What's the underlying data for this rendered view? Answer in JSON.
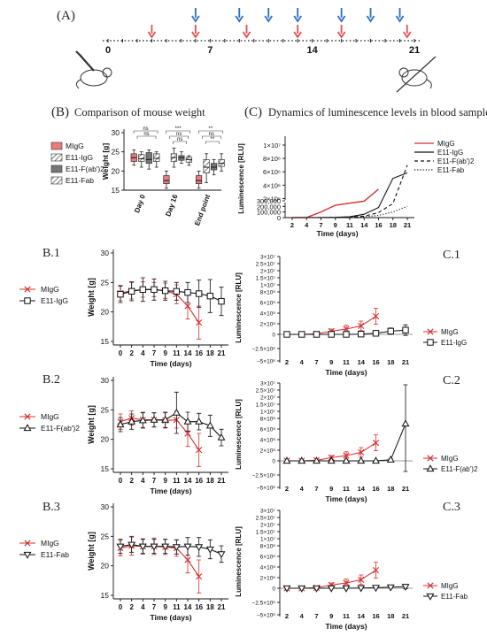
{
  "timeline": {
    "panel_label": "(A)",
    "ticks": [
      0,
      7,
      14,
      21
    ],
    "red_arrow_days": [
      3,
      6,
      9.5,
      13,
      16,
      20.5
    ],
    "blue_arrow_days": [
      6,
      9,
      11,
      13,
      16,
      18,
      20
    ],
    "red_color": "#e05252",
    "blue_color": "#2b6fc2",
    "icons": [
      "mouse-injection-icon",
      "mouse-crossed-icon"
    ]
  },
  "titles": {
    "b": "(B)",
    "b_text": "Comparison of mouse weight",
    "c": "(C)",
    "c_text": "Dynamics of luminescence levels in blood samples",
    "b1": "B.1",
    "b2": "B.2",
    "b3": "B.3",
    "c1": "C.1",
    "c2": "C.2",
    "c3": "C.3"
  },
  "chart_data": [
    {
      "id": "B",
      "type": "box",
      "ylabel": "Weight [g]",
      "ylim": [
        15,
        30
      ],
      "yticks": [
        15,
        20,
        25,
        30
      ],
      "categories": [
        "Day 0",
        "Day 16",
        "End point"
      ],
      "legend": [
        "MIgG",
        "E11-IgG",
        "E11-F(ab')2",
        "E11-Fab"
      ],
      "boxes": [
        [
          [
            21.5,
            22.5,
            23.5,
            24.5,
            25.5
          ],
          [
            21,
            22.5,
            23.2,
            24.3,
            25
          ],
          [
            20.5,
            22,
            23,
            24.8,
            25.5
          ],
          [
            21,
            22.5,
            23.3,
            24.5,
            25
          ]
        ],
        [
          [
            15.5,
            16.7,
            17.5,
            18.8,
            20
          ],
          [
            21,
            22.5,
            23.5,
            24.5,
            26
          ],
          [
            22,
            22.8,
            23.5,
            24,
            25
          ],
          [
            21.5,
            22.3,
            23,
            23.6,
            24
          ]
        ],
        [
          [
            15.5,
            16.7,
            17.5,
            18.8,
            20
          ],
          [
            17,
            19.5,
            21,
            23,
            24.5
          ],
          [
            19,
            20.3,
            21,
            22,
            23
          ],
          [
            20,
            21.2,
            22,
            23,
            24.5
          ]
        ]
      ],
      "annotations": [
        {
          "group": 0,
          "text": "ns"
        },
        {
          "group": 0,
          "text": "ns"
        },
        {
          "group": 1,
          "text": "***"
        },
        {
          "group": 1,
          "text": "ns"
        },
        {
          "group": 1,
          "text": "ns"
        },
        {
          "group": 2,
          "text": "**"
        },
        {
          "group": 2,
          "text": "ns"
        },
        {
          "group": 2,
          "text": "**"
        }
      ]
    },
    {
      "id": "C",
      "type": "line",
      "ylabel": "Luminescence [RLU]",
      "xlabel": "Time (days)",
      "x": [
        2,
        4,
        7,
        9,
        11,
        14,
        16,
        18,
        21
      ],
      "upper_ticks": [
        "1×10⁷",
        "8×10⁶",
        "6×10⁶",
        "4×10⁶",
        "2×10⁶"
      ],
      "lower_ticks": [
        "300,000",
        "200,000",
        "100,000",
        "0"
      ],
      "series": [
        {
          "name": "MIgG",
          "style": "solid",
          "color": "#d32f2f",
          "x": [
            2,
            4,
            7,
            9,
            11,
            14,
            16
          ],
          "y": [
            0,
            2000,
            100000,
            1000000,
            1300000,
            1600000,
            3400000
          ]
        },
        {
          "name": "E11-IgG",
          "style": "solid",
          "color": "#111111",
          "x": [
            2,
            4,
            7,
            9,
            11,
            14,
            16,
            18,
            21
          ],
          "y": [
            0,
            0,
            2000,
            5000,
            15000,
            60000,
            180000,
            700000,
            800000
          ]
        },
        {
          "name": "E11-F(ab')2",
          "style": "dashed",
          "color": "#111111",
          "x": [
            2,
            4,
            7,
            9,
            11,
            14,
            16,
            18,
            21
          ],
          "y": [
            0,
            0,
            1000,
            3000,
            8000,
            25000,
            90000,
            250000,
            7000000
          ]
        },
        {
          "name": "E11-Fab",
          "style": "dotted",
          "color": "#111111",
          "x": [
            2,
            4,
            7,
            9,
            11,
            14,
            16,
            18,
            21
          ],
          "y": [
            0,
            0,
            1000,
            2000,
            5000,
            15000,
            40000,
            100000,
            200000
          ]
        }
      ]
    },
    {
      "id": "B.1",
      "type": "line",
      "ylabel": "Weight [g]",
      "xlabel": "Time (days)",
      "x": [
        0,
        2,
        4,
        7,
        9,
        11,
        14,
        16,
        18,
        21
      ],
      "ylim": [
        15,
        30
      ],
      "yticks": [
        15,
        20,
        25,
        30
      ],
      "series": [
        {
          "name": "MIgG",
          "marker": "x",
          "color": "#d32f2f",
          "x": [
            0,
            2,
            4,
            7,
            9,
            11,
            14,
            16
          ],
          "y": [
            23.2,
            23.6,
            23.8,
            23.8,
            23.6,
            23.0,
            21.0,
            18.2
          ],
          "err": [
            1.3,
            1.4,
            1.3,
            1.2,
            1.3,
            1.6,
            2.2,
            2.8
          ]
        },
        {
          "name": "E11-IgG",
          "marker": "square",
          "color": "#111111",
          "x": [
            0,
            2,
            4,
            7,
            9,
            11,
            14,
            16,
            18,
            21
          ],
          "y": [
            23.0,
            23.5,
            23.8,
            23.8,
            23.6,
            23.5,
            23.3,
            23.1,
            22.7,
            21.8
          ],
          "err": [
            1.4,
            1.6,
            2.0,
            1.8,
            1.6,
            1.5,
            1.7,
            2.3,
            2.8,
            2.4
          ]
        }
      ]
    },
    {
      "id": "C.1",
      "type": "line",
      "ylabel": "Luminescence [RLU]",
      "xlabel": "Time (days)",
      "x": [
        2,
        4,
        7,
        9,
        11,
        14,
        16,
        18,
        21
      ],
      "yticks": [
        "3×10⁷",
        "2.5×10⁷",
        "2×10⁷",
        "1.5×10⁷",
        "1×10⁷",
        "8×10⁶",
        "6×10⁶",
        "4×10⁶",
        "2×10⁶",
        "0",
        "−2.5×10⁶",
        "−5×10⁶"
      ],
      "series": [
        {
          "name": "MIgG",
          "marker": "x",
          "color": "#d32f2f",
          "x": [
            2,
            4,
            7,
            9,
            11,
            14,
            16
          ],
          "y": [
            0,
            0,
            100000,
            600000,
            1000000,
            1600000,
            3400000
          ],
          "err": [
            0,
            0,
            0,
            400000,
            700000,
            900000,
            1500000
          ]
        },
        {
          "name": "E11-IgG",
          "marker": "square",
          "color": "#111111",
          "x": [
            2,
            4,
            7,
            9,
            11,
            14,
            16,
            18,
            21
          ],
          "y": [
            0,
            0,
            0,
            0,
            0,
            50000,
            200000,
            600000,
            800000
          ],
          "err": [
            0,
            0,
            0,
            0,
            0,
            0,
            300000,
            600000,
            1000000
          ]
        }
      ]
    },
    {
      "id": "B.2",
      "type": "line",
      "ylabel": "Weight [g]",
      "xlabel": "Time (days)",
      "x": [
        0,
        2,
        4,
        7,
        9,
        11,
        14,
        16,
        18,
        21
      ],
      "ylim": [
        15,
        30
      ],
      "yticks": [
        15,
        20,
        25,
        30
      ],
      "series": [
        {
          "name": "MIgG",
          "marker": "x",
          "color": "#d32f2f",
          "x": [
            0,
            2,
            4,
            7,
            9,
            11,
            14,
            16
          ],
          "y": [
            23.0,
            23.6,
            23.3,
            23.3,
            23.2,
            23.3,
            21.0,
            18.2
          ],
          "err": [
            1.3,
            1.2,
            1.3,
            1.2,
            1.3,
            1.4,
            2.2,
            2.8
          ]
        },
        {
          "name": "E11-F(ab')2",
          "marker": "triangle",
          "color": "#111111",
          "x": [
            0,
            2,
            4,
            7,
            9,
            11,
            14,
            16,
            18,
            21
          ],
          "y": [
            22.5,
            23.0,
            23.2,
            23.3,
            23.3,
            24.5,
            23.0,
            23.0,
            22.3,
            20.3
          ],
          "err": [
            1.2,
            1.3,
            1.3,
            1.2,
            1.3,
            3.5,
            1.6,
            1.4,
            1.8,
            1.4
          ]
        }
      ]
    },
    {
      "id": "C.2",
      "type": "line",
      "ylabel": "Luminescence [RLU]",
      "xlabel": "Time (days)",
      "x": [
        2,
        4,
        7,
        9,
        11,
        14,
        16,
        18,
        21
      ],
      "yticks": [
        "3×10⁷",
        "2.5×10⁷",
        "2×10⁷",
        "1.5×10⁷",
        "1×10⁷",
        "8×10⁶",
        "6×10⁶",
        "4×10⁶",
        "2×10⁶",
        "0",
        "−2.5×10⁶",
        "−5×10⁶"
      ],
      "series": [
        {
          "name": "MIgG",
          "marker": "x",
          "color": "#d32f2f",
          "x": [
            2,
            4,
            7,
            9,
            11,
            14,
            16
          ],
          "y": [
            0,
            0,
            100000,
            600000,
            1000000,
            1600000,
            3400000
          ],
          "err": [
            0,
            0,
            0,
            400000,
            700000,
            900000,
            1500000
          ]
        },
        {
          "name": "E11-F(ab')2",
          "marker": "triangle",
          "color": "#111111",
          "x": [
            2,
            4,
            7,
            9,
            11,
            14,
            16,
            18,
            21
          ],
          "y": [
            0,
            0,
            0,
            0,
            0,
            0,
            0,
            200000,
            7000000
          ],
          "err": [
            0,
            0,
            0,
            0,
            0,
            0,
            0,
            200000,
            9000000
          ]
        }
      ]
    },
    {
      "id": "B.3",
      "type": "line",
      "ylabel": "Weight [g]",
      "xlabel": "Time (days)",
      "x": [
        0,
        2,
        4,
        7,
        9,
        11,
        14,
        16,
        18,
        21
      ],
      "ylim": [
        15,
        30
      ],
      "yticks": [
        15,
        20,
        25,
        30
      ],
      "series": [
        {
          "name": "MIgG",
          "marker": "x",
          "color": "#d32f2f",
          "x": [
            0,
            2,
            4,
            7,
            9,
            11,
            14,
            16
          ],
          "y": [
            23.0,
            23.4,
            23.3,
            23.3,
            23.2,
            23.0,
            21.0,
            18.2
          ],
          "err": [
            1.3,
            1.6,
            1.3,
            1.4,
            1.3,
            1.4,
            2.2,
            2.8
          ]
        },
        {
          "name": "E11-Fab",
          "marker": "triangle-down",
          "color": "#111111",
          "x": [
            0,
            2,
            4,
            7,
            9,
            11,
            14,
            16,
            18,
            21
          ],
          "y": [
            23.3,
            23.6,
            23.3,
            23.3,
            23.3,
            23.2,
            23.3,
            23.2,
            22.8,
            22.0
          ],
          "err": [
            1.2,
            1.3,
            1.2,
            1.2,
            1.2,
            1.2,
            1.5,
            1.6,
            1.6,
            1.4
          ]
        }
      ]
    },
    {
      "id": "C.3",
      "type": "line",
      "ylabel": "Luminescence [RLU]",
      "xlabel": "Time (days)",
      "x": [
        2,
        4,
        7,
        9,
        11,
        14,
        16,
        18,
        21
      ],
      "yticks": [
        "3×10⁷",
        "2.5×10⁷",
        "2×10⁷",
        "1.5×10⁷",
        "1×10⁷",
        "8×10⁶",
        "6×10⁶",
        "4×10⁶",
        "2×10⁶",
        "0",
        "−2.5×10⁶",
        "−5×10⁶"
      ],
      "series": [
        {
          "name": "MIgG",
          "marker": "x",
          "color": "#d32f2f",
          "x": [
            2,
            4,
            7,
            9,
            11,
            14,
            16
          ],
          "y": [
            0,
            0,
            100000,
            600000,
            1000000,
            1600000,
            3400000
          ],
          "err": [
            0,
            0,
            0,
            400000,
            700000,
            900000,
            1500000
          ]
        },
        {
          "name": "E11-Fab",
          "marker": "triangle-down",
          "color": "#111111",
          "x": [
            2,
            4,
            7,
            9,
            11,
            14,
            16,
            18,
            21
          ],
          "y": [
            0,
            0,
            0,
            0,
            0,
            50000,
            100000,
            200000,
            300000
          ],
          "err": [
            0,
            0,
            0,
            0,
            0,
            0,
            0,
            200000,
            400000
          ]
        }
      ]
    }
  ]
}
